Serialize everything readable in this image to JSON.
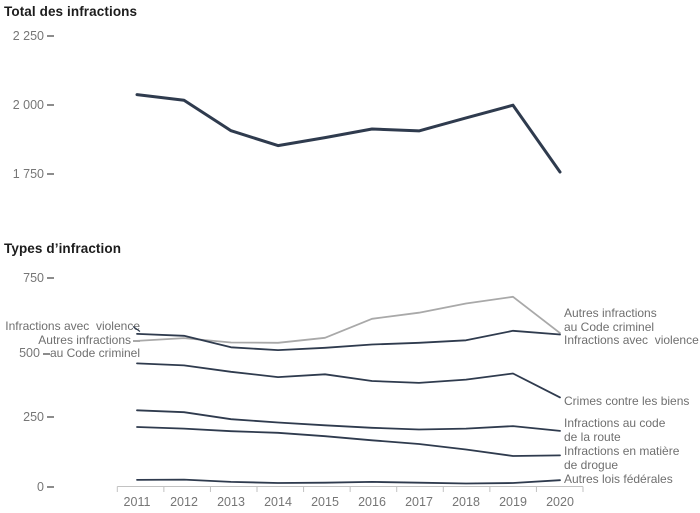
{
  "colors": {
    "line_dark": "#2f3b4e",
    "line_gray": "#a9a9a9",
    "text_muted": "#767676",
    "axis_gray": "#c2c2c2",
    "title_text": "#1c1c1c"
  },
  "chart_data": [
    {
      "type": "line",
      "title": "Total des infractions",
      "categories": [
        "2011",
        "2012",
        "2013",
        "2014",
        "2015",
        "2016",
        "2017",
        "2018",
        "2019",
        "2020"
      ],
      "y_tick_labels": [
        "2 250",
        "2 000",
        "1 750"
      ],
      "ylim": [
        1750,
        2250
      ],
      "grid": false,
      "series": [
        {
          "name": "Total des infractions",
          "color": "dark",
          "values": [
            2041,
            2021,
            1911,
            1857,
            1886,
            1917,
            1910,
            1957,
            2003,
            1762
          ]
        }
      ]
    },
    {
      "type": "line",
      "title": "Types d’infraction",
      "categories": [
        "2011",
        "2012",
        "2013",
        "2014",
        "2015",
        "2016",
        "2017",
        "2018",
        "2019",
        "2020"
      ],
      "y_tick_labels": [
        "750",
        "500",
        "250",
        "0"
      ],
      "ylim": [
        0,
        750
      ],
      "grid": false,
      "series": [
        {
          "name": "Autres infractions au Code criminel",
          "color": "gray",
          "values": [
            528,
            538,
            522,
            521,
            539,
            607,
            629,
            662,
            686,
            556
          ]
        },
        {
          "name": "Infractions avec violence",
          "color": "dark",
          "values": [
            553,
            546,
            505,
            495,
            503,
            515,
            521,
            530,
            564,
            551
          ]
        },
        {
          "name": "Crimes contre les biens",
          "color": "dark",
          "values": [
            447,
            440,
            417,
            398,
            408,
            384,
            377,
            389,
            411,
            325
          ]
        },
        {
          "name": "Infractions au code de la route",
          "color": "dark",
          "values": [
            279,
            272,
            247,
            235,
            225,
            216,
            210,
            213,
            222,
            205
          ]
        },
        {
          "name": "Infractions en matière de drogue",
          "color": "dark",
          "values": [
            219,
            213,
            204,
            198,
            186,
            171,
            158,
            138,
            115,
            117
          ]
        },
        {
          "name": "Autres lois fédérales",
          "color": "dark",
          "values": [
            29,
            30,
            22,
            18,
            19,
            22,
            19,
            16,
            18,
            28
          ]
        }
      ],
      "left_labels": {
        "line1": "Infractions avec  violence",
        "line2": "Autres infractions",
        "line3": "au Code criminel"
      },
      "right_labels": [
        "Autres infractions\nau Code criminel",
        "Infractions avec  violence",
        "Crimes contre les biens",
        "Infractions au code\nde la route",
        "Infractions en matière\nde drogue",
        "Autres lois fédérales"
      ]
    }
  ]
}
